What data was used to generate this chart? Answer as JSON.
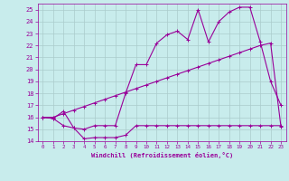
{
  "xlabel": "Windchill (Refroidissement éolien,°C)",
  "bg_color": "#c8ecec",
  "grid_color": "#aacccc",
  "line_color": "#990099",
  "xlim": [
    -0.5,
    23.5
  ],
  "ylim": [
    14,
    25.5
  ],
  "yticks": [
    14,
    15,
    16,
    17,
    18,
    19,
    20,
    21,
    22,
    23,
    24,
    25
  ],
  "xticks": [
    0,
    1,
    2,
    3,
    4,
    5,
    6,
    7,
    8,
    9,
    10,
    11,
    12,
    13,
    14,
    15,
    16,
    17,
    18,
    19,
    20,
    21,
    22,
    23
  ],
  "line1_x": [
    0,
    1,
    2,
    3,
    4,
    5,
    6,
    7,
    8,
    9,
    10,
    11,
    12,
    13,
    14,
    15,
    16,
    17,
    18,
    19,
    20,
    21,
    22,
    23
  ],
  "line1_y": [
    16.0,
    15.9,
    15.3,
    15.1,
    14.2,
    14.3,
    14.3,
    14.3,
    14.5,
    15.3,
    15.3,
    15.3,
    15.3,
    15.3,
    15.3,
    15.3,
    15.3,
    15.3,
    15.3,
    15.3,
    15.3,
    15.3,
    15.3,
    15.3
  ],
  "line2_x": [
    0,
    1,
    2,
    3,
    4,
    5,
    6,
    7,
    8,
    9,
    10,
    11,
    12,
    13,
    14,
    15,
    16,
    17,
    18,
    19,
    20,
    21,
    22,
    23
  ],
  "line2_y": [
    16.0,
    16.0,
    16.3,
    16.6,
    16.9,
    17.2,
    17.5,
    17.8,
    18.1,
    18.4,
    18.7,
    19.0,
    19.3,
    19.6,
    19.9,
    20.2,
    20.5,
    20.8,
    21.1,
    21.4,
    21.7,
    22.0,
    22.2,
    15.2
  ],
  "line3_x": [
    0,
    1,
    2,
    3,
    4,
    5,
    6,
    7,
    8,
    9,
    10,
    11,
    12,
    13,
    14,
    15,
    16,
    17,
    18,
    19,
    20,
    21,
    22,
    23
  ],
  "line3_y": [
    16.0,
    15.9,
    16.5,
    15.1,
    15.0,
    15.3,
    15.3,
    15.3,
    18.0,
    20.4,
    20.4,
    22.2,
    22.9,
    23.2,
    22.5,
    25.0,
    22.3,
    24.0,
    24.8,
    25.2,
    25.2,
    22.3,
    19.0,
    17.0
  ]
}
